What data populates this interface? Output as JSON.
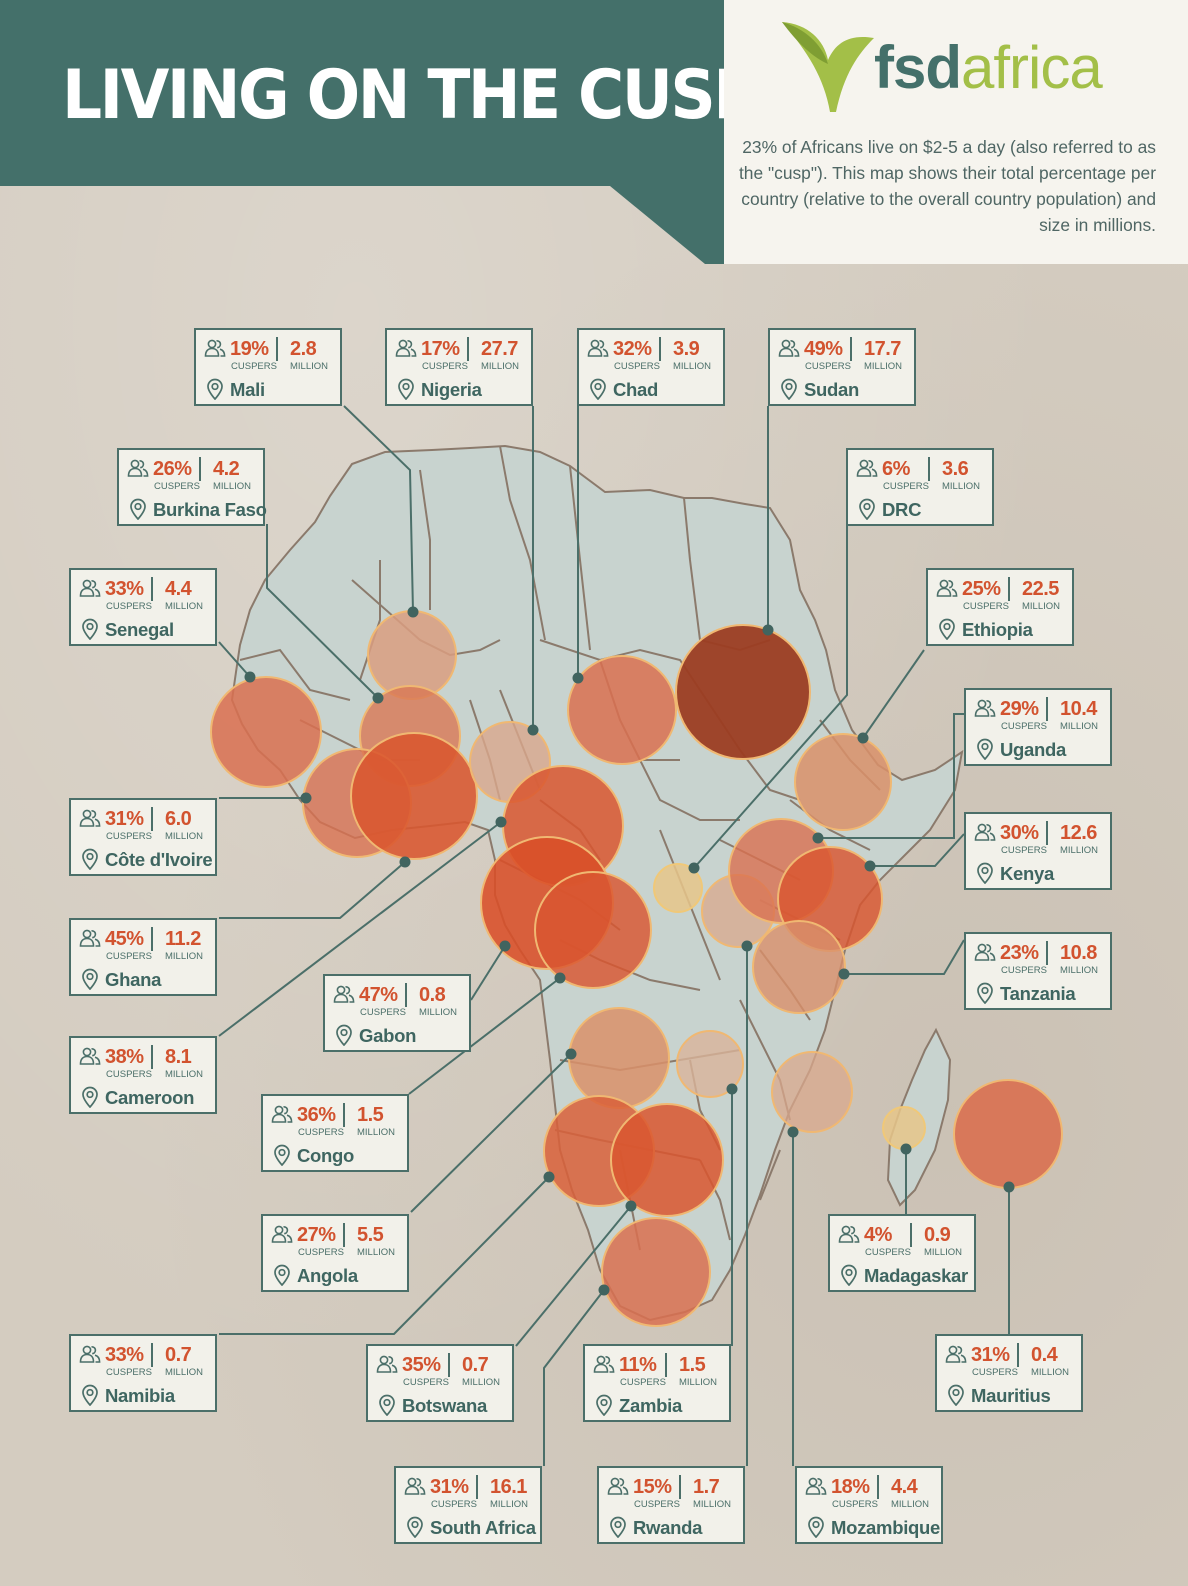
{
  "title": "LIVING ON THE CUSP",
  "logo": {
    "fsd": "fsd",
    "africa": "africa"
  },
  "intro": "23% of Africans live on $2-5 a day (also referred to as the \"cusp\"). This map shows their total percentage per country (relative to the overall country population) and size in millions.",
  "labels": {
    "cuspers": "CUSPERS",
    "million": "MILLION"
  },
  "colors": {
    "header": "#44706a",
    "landmass": "#c8d3cf",
    "border_lines": "#8b7a6c",
    "bubble_light": "#d99e80",
    "bubble_mid": "#d96a43",
    "bubble_dark": "#9c3d22",
    "logo_green": "#a3bf48",
    "value_text": "#d2532f"
  },
  "legend_icons": [
    "people-icon",
    "location-pin-icon"
  ],
  "countries": [
    {
      "name": "Mali",
      "pct": "19%",
      "million": "2.8",
      "pct_value": 19,
      "million_value": 2.8
    },
    {
      "name": "Nigeria",
      "pct": "17%",
      "million": "27.7",
      "pct_value": 17,
      "million_value": 27.7
    },
    {
      "name": "Chad",
      "pct": "32%",
      "million": "3.9",
      "pct_value": 32,
      "million_value": 3.9
    },
    {
      "name": "Sudan",
      "pct": "49%",
      "million": "17.7",
      "pct_value": 49,
      "million_value": 17.7
    },
    {
      "name": "Burkina Faso",
      "pct": "26%",
      "million": "4.2",
      "pct_value": 26,
      "million_value": 4.2
    },
    {
      "name": "DRC",
      "pct": "6%",
      "million": "3.6",
      "pct_value": 6,
      "million_value": 3.6
    },
    {
      "name": "Senegal",
      "pct": "33%",
      "million": "4.4",
      "pct_value": 33,
      "million_value": 4.4
    },
    {
      "name": "Ethiopia",
      "pct": "25%",
      "million": "22.5",
      "pct_value": 25,
      "million_value": 22.5
    },
    {
      "name": "Uganda",
      "pct": "29%",
      "million": "10.4",
      "pct_value": 29,
      "million_value": 10.4
    },
    {
      "name": "Côte d'Ivoire",
      "pct": "31%",
      "million": "6.0",
      "pct_value": 31,
      "million_value": 6.0
    },
    {
      "name": "Kenya",
      "pct": "30%",
      "million": "12.6",
      "pct_value": 30,
      "million_value": 12.6
    },
    {
      "name": "Ghana",
      "pct": "45%",
      "million": "11.2",
      "pct_value": 45,
      "million_value": 11.2
    },
    {
      "name": "Tanzania",
      "pct": "23%",
      "million": "10.8",
      "pct_value": 23,
      "million_value": 10.8
    },
    {
      "name": "Gabon",
      "pct": "47%",
      "million": "0.8",
      "pct_value": 47,
      "million_value": 0.8
    },
    {
      "name": "Cameroon",
      "pct": "38%",
      "million": "8.1",
      "pct_value": 38,
      "million_value": 8.1
    },
    {
      "name": "Congo",
      "pct": "36%",
      "million": "1.5",
      "pct_value": 36,
      "million_value": 1.5
    },
    {
      "name": "Angola",
      "pct": "27%",
      "million": "5.5",
      "pct_value": 27,
      "million_value": 5.5
    },
    {
      "name": "Madagaskar",
      "pct": "4%",
      "million": "0.9",
      "pct_value": 4,
      "million_value": 0.9
    },
    {
      "name": "Namibia",
      "pct": "33%",
      "million": "0.7",
      "pct_value": 33,
      "million_value": 0.7
    },
    {
      "name": "Botswana",
      "pct": "35%",
      "million": "0.7",
      "pct_value": 35,
      "million_value": 0.7
    },
    {
      "name": "Zambia",
      "pct": "11%",
      "million": "1.5",
      "pct_value": 11,
      "million_value": 1.5
    },
    {
      "name": "Mauritius",
      "pct": "31%",
      "million": "0.4",
      "pct_value": 31,
      "million_value": 0.4
    },
    {
      "name": "South Africa",
      "pct": "31%",
      "million": "16.1",
      "pct_value": 31,
      "million_value": 16.1
    },
    {
      "name": "Rwanda",
      "pct": "15%",
      "million": "1.7",
      "pct_value": 15,
      "million_value": 1.7
    },
    {
      "name": "Mozambique",
      "pct": "18%",
      "million": "4.4",
      "pct_value": 18,
      "million_value": 4.4
    }
  ]
}
